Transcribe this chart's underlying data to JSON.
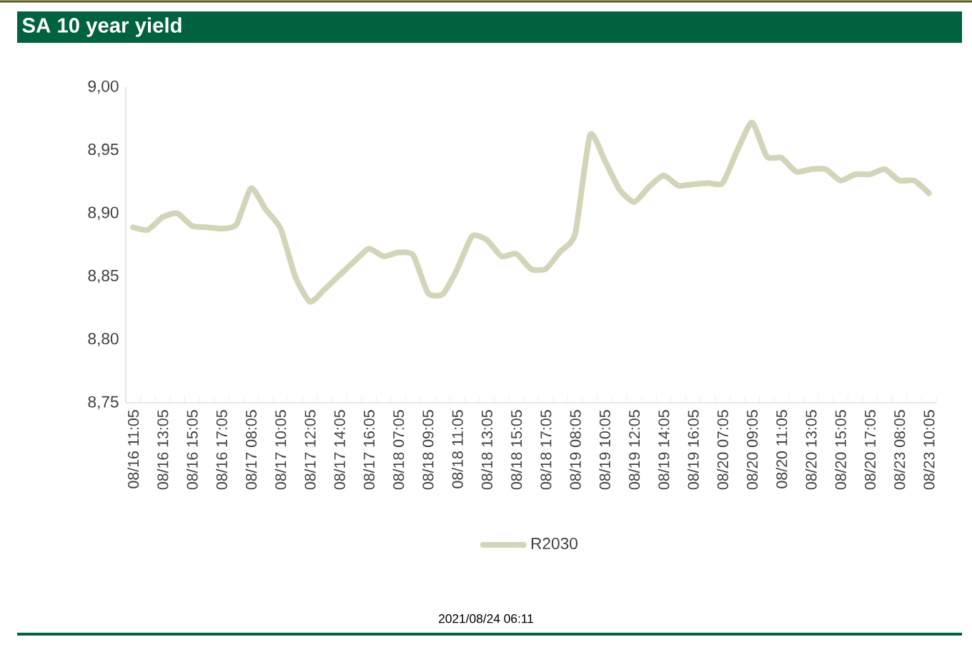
{
  "chart_data": {
    "type": "line",
    "title": "SA 10 year yield",
    "categories": [
      "08/16 11:05",
      null,
      "08/16 13:05",
      null,
      "08/16 15:05",
      null,
      "08/16 17:05",
      null,
      "08/17 08:05",
      null,
      "08/17 10:05",
      null,
      "08/17 12:05",
      null,
      "08/17 14:05",
      null,
      "08/17 16:05",
      null,
      "08/18 07:05",
      null,
      "08/18 09:05",
      null,
      "08/18 11:05",
      null,
      "08/18 13:05",
      null,
      "08/18 15:05",
      null,
      "08/18 17:05",
      null,
      "08/19 08:05",
      null,
      "08/19 10:05",
      null,
      "08/19 12:05",
      null,
      "08/19 14:05",
      null,
      "08/19 16:05",
      null,
      "08/20 07:05",
      null,
      "08/20 09:05",
      null,
      "08/20 11:05",
      null,
      "08/20 13:05",
      null,
      "08/20 15:05",
      null,
      "08/20 17:05",
      null,
      "08/23 08:05",
      null,
      "08/23 10:05"
    ],
    "series": [
      {
        "name": "R2030",
        "color": "#d3d4b8",
        "values": [
          8.889,
          8.887,
          8.897,
          8.9,
          8.89,
          8.889,
          8.888,
          8.891,
          8.92,
          8.903,
          8.888,
          8.85,
          8.83,
          8.84,
          8.851,
          8.862,
          8.872,
          8.866,
          8.869,
          8.867,
          8.837,
          8.836,
          8.856,
          8.882,
          8.879,
          8.866,
          8.868,
          8.856,
          8.856,
          8.87,
          8.884,
          8.962,
          8.942,
          8.919,
          8.909,
          8.921,
          8.93,
          8.922,
          8.923,
          8.924,
          8.924,
          8.95,
          8.972,
          8.945,
          8.944,
          8.933,
          8.935,
          8.935,
          8.926,
          8.931,
          8.931,
          8.935,
          8.926,
          8.926,
          8.916
        ]
      }
    ],
    "ylim": [
      8.75,
      9.0
    ],
    "yticks": [
      {
        "value": 8.75,
        "label": "8,75"
      },
      {
        "value": 8.8,
        "label": "8,80"
      },
      {
        "value": 8.85,
        "label": "8,85"
      },
      {
        "value": 8.9,
        "label": "8,90"
      },
      {
        "value": 8.95,
        "label": "8,95"
      },
      {
        "value": 9.0,
        "label": "9,00"
      }
    ],
    "grid": false,
    "legend": "bottom",
    "marker": "none",
    "line_style": "solid",
    "annotations": [
      "2021/08/24 06:11"
    ]
  }
}
